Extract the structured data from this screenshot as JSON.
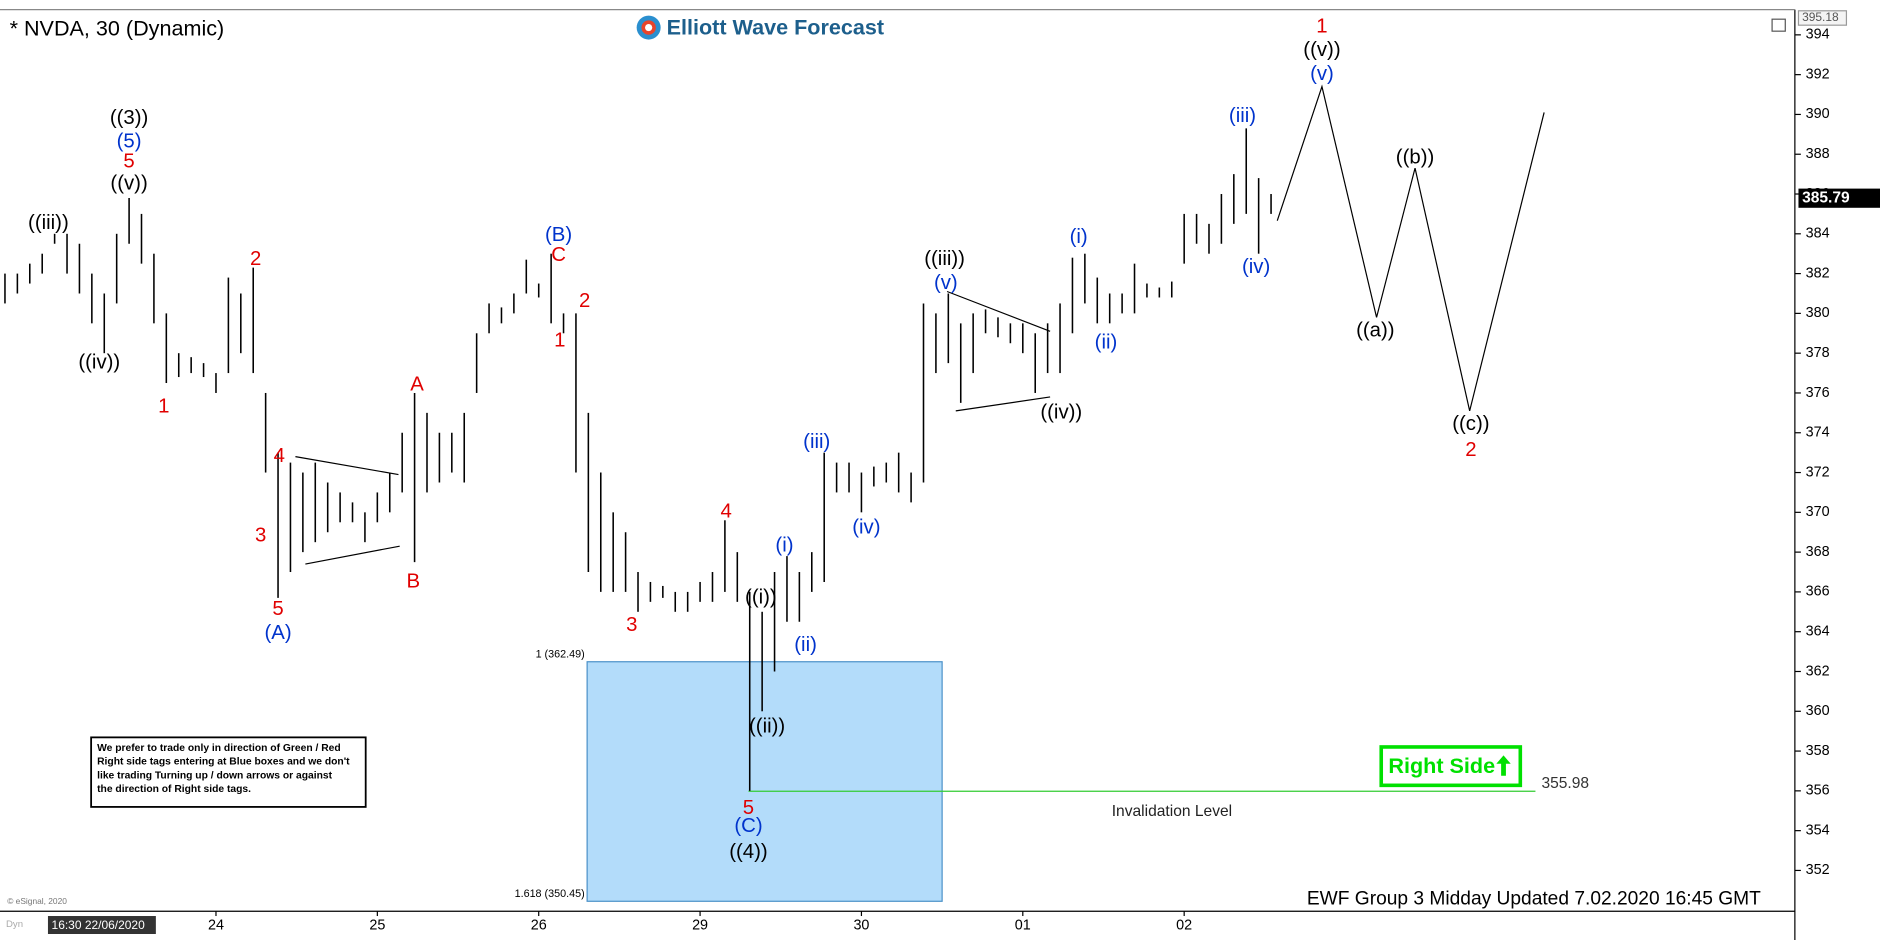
{
  "chart_data": {
    "type": "ohlc",
    "title": "* NVDA, 30 (Dynamic)",
    "logo": "Elliott Wave Forecast",
    "footer": "EWF Group 3 Midday Updated 7.02.2020 16:45 GMT",
    "copyright": "© eSignal, 2020",
    "cursor_time": "16:30 22/06/2020",
    "dyn_label": "Dyn",
    "note": [
      "We prefer to trade only in direction of Green / Red",
      "Right side tags entering at Blue boxes and we don't",
      "like trading Turning up / down arrows or against",
      "the direction of Right side tags."
    ],
    "right_side": "Right Side",
    "right_side_color": "#00e000",
    "xlim": [
      -4.4,
      140.2
    ],
    "ylim": [
      349.95,
      395.27
    ],
    "xticks": [
      {
        "value": 13,
        "label": "24"
      },
      {
        "value": 26,
        "label": "25"
      },
      {
        "value": 39,
        "label": "26"
      },
      {
        "value": 52,
        "label": "29"
      },
      {
        "value": 65,
        "label": "30"
      },
      {
        "value": 78,
        "label": "01"
      },
      {
        "value": 91,
        "label": "02"
      }
    ],
    "yticks": [
      352,
      354,
      356,
      358,
      360,
      362,
      364,
      366,
      368,
      370,
      372,
      374,
      376,
      378,
      380,
      382,
      384,
      386,
      388,
      390,
      392,
      394
    ],
    "top_price": 395.18,
    "last_price": 385.79,
    "bars": {
      "color": "#000000",
      "x": [
        -4,
        -3,
        -2,
        -1,
        0,
        1,
        2,
        3,
        4,
        5,
        6,
        7,
        8,
        9,
        10,
        11,
        12,
        13,
        14,
        15,
        16,
        17,
        18,
        19,
        20,
        21,
        22,
        23,
        24,
        25,
        26,
        27,
        28,
        29,
        30,
        31,
        32,
        33,
        34,
        35,
        36,
        37,
        38,
        39,
        40,
        41,
        42,
        43,
        44,
        45,
        46,
        47,
        48,
        49,
        50,
        51,
        52,
        53,
        54,
        55,
        56,
        57,
        58,
        59,
        60,
        61,
        62,
        63,
        64,
        65,
        66,
        67,
        68,
        69,
        70,
        71,
        72,
        73,
        74,
        75,
        76,
        77,
        78,
        79,
        80,
        81,
        82,
        83,
        84,
        85,
        86,
        87,
        88,
        89,
        90,
        91,
        92,
        93,
        94,
        95,
        96,
        97,
        98
      ],
      "high": [
        382,
        382,
        382.5,
        383,
        384,
        384,
        383.5,
        382,
        381,
        384,
        385.8,
        385,
        383,
        380,
        378,
        377.8,
        377.5,
        377,
        381.8,
        381,
        382.3,
        376,
        373,
        372.5,
        372,
        372.5,
        371.5,
        371,
        370.5,
        370,
        371,
        372,
        374,
        376,
        375,
        374,
        374,
        375,
        379,
        380.5,
        380.3,
        381,
        382.7,
        381.5,
        383,
        380,
        380,
        375,
        372,
        370,
        369,
        367,
        366.5,
        366.3,
        366,
        366,
        366.5,
        367,
        369.6,
        368,
        366,
        365,
        367,
        367.8,
        367,
        368,
        373,
        372.5,
        372.5,
        372,
        372.3,
        372.5,
        373,
        372,
        380.5,
        380,
        381,
        379.5,
        380,
        380.2,
        379.8,
        379.5,
        379.5,
        379,
        379.5,
        380.5,
        382.8,
        383,
        381.8,
        381,
        381,
        382.5,
        381.5,
        381.3,
        381.6,
        385,
        385,
        384.5,
        386,
        387,
        389.3,
        386.8,
        386
      ],
      "low": [
        380.5,
        381,
        381.5,
        382,
        383.5,
        382,
        381,
        379.5,
        378,
        380.5,
        383.5,
        382.5,
        379.5,
        376.5,
        376.8,
        377,
        376.8,
        376,
        377,
        378,
        377,
        372,
        365.7,
        367,
        368,
        368.5,
        369,
        369.5,
        369.5,
        368.5,
        369.5,
        370,
        371,
        367.5,
        371,
        371.5,
        372,
        371.5,
        376,
        379,
        379.5,
        380,
        381,
        380.8,
        379.5,
        379,
        372,
        367,
        366,
        366,
        366,
        365,
        365.5,
        365.7,
        365,
        365,
        365.5,
        365.5,
        366,
        365.5,
        356,
        360,
        362,
        364.5,
        364.5,
        366,
        366.5,
        371,
        371,
        370,
        371.3,
        371.5,
        371,
        370.5,
        371.5,
        377,
        377.5,
        375.5,
        377,
        379,
        378.8,
        378.5,
        378,
        376,
        377,
        377,
        379,
        380.5,
        379.5,
        379.5,
        380,
        380,
        380.8,
        380.8,
        380.8,
        382.5,
        383.5,
        383,
        383.5,
        384.5,
        385,
        383,
        385
      ]
    },
    "projection": {
      "color": "#000000",
      "x": [
        98.5,
        102.1,
        106.5,
        109.6,
        114.0,
        120.0
      ],
      "y": [
        384.66,
        391.4,
        379.8,
        387.3,
        375.1,
        390.1
      ]
    },
    "trendlines": [
      {
        "x": [
          19.4,
          27.7
        ],
        "y": [
          372.8,
          371.9
        ]
      },
      {
        "x": [
          20.2,
          27.8
        ],
        "y": [
          367.4,
          368.3
        ]
      },
      {
        "x": [
          71.9,
          80.2
        ],
        "y": [
          381.1,
          379.1
        ]
      },
      {
        "x": [
          72.6,
          80.2
        ],
        "y": [
          375.1,
          375.8
        ]
      }
    ],
    "fib_box": {
      "color": "#b3dcfa",
      "x": [
        42.9,
        71.5
      ],
      "y": [
        362.49,
        350.45
      ],
      "labels": [
        "1 (362.49)",
        "1.618 (350.45)"
      ]
    },
    "invalidation": {
      "value": 355.98,
      "x": [
        55.9,
        119.3
      ],
      "label": "Invalidation Level",
      "color": "#33cc33"
    },
    "annotations": [
      {
        "text": "((iii))",
        "x": -0.5,
        "y": 384.5,
        "color": "#000000"
      },
      {
        "text": "((iv))",
        "x": 3.6,
        "y": 377.5,
        "color": "#000000"
      },
      {
        "text": "((3))",
        "x": 6.0,
        "y": 389.8,
        "color": "#000000"
      },
      {
        "text": "(5)",
        "x": 6.0,
        "y": 388.6,
        "color": "#0033cc"
      },
      {
        "text": "5",
        "x": 6.0,
        "y": 387.6,
        "color": "#e00000"
      },
      {
        "text": "((v))",
        "x": 6.0,
        "y": 386.5,
        "color": "#000000"
      },
      {
        "text": "1",
        "x": 8.8,
        "y": 375.3,
        "color": "#e00000"
      },
      {
        "text": "2",
        "x": 16.2,
        "y": 382.7,
        "color": "#e00000"
      },
      {
        "text": "4",
        "x": 18.1,
        "y": 372.8,
        "color": "#e00000"
      },
      {
        "text": "3",
        "x": 16.6,
        "y": 368.8,
        "color": "#e00000"
      },
      {
        "text": "5",
        "x": 18.0,
        "y": 365.1,
        "color": "#e00000"
      },
      {
        "text": "(A)",
        "x": 18.0,
        "y": 363.9,
        "color": "#0033cc"
      },
      {
        "text": "A",
        "x": 29.2,
        "y": 376.4,
        "color": "#e00000"
      },
      {
        "text": "B",
        "x": 28.9,
        "y": 366.5,
        "color": "#e00000"
      },
      {
        "text": "(B)",
        "x": 40.6,
        "y": 383.9,
        "color": "#0033cc"
      },
      {
        "text": "C",
        "x": 40.6,
        "y": 382.9,
        "color": "#e00000"
      },
      {
        "text": "2",
        "x": 42.7,
        "y": 380.6,
        "color": "#e00000"
      },
      {
        "text": "1",
        "x": 40.7,
        "y": 378.6,
        "color": "#e00000"
      },
      {
        "text": "3",
        "x": 46.5,
        "y": 364.3,
        "color": "#e00000"
      },
      {
        "text": "4",
        "x": 54.1,
        "y": 370.0,
        "color": "#e00000"
      },
      {
        "text": "((i))",
        "x": 56.9,
        "y": 365.7,
        "color": "#000000"
      },
      {
        "text": "(i)",
        "x": 58.8,
        "y": 368.3,
        "color": "#0033cc"
      },
      {
        "text": "(iii)",
        "x": 61.4,
        "y": 373.5,
        "color": "#0033cc"
      },
      {
        "text": "(iv)",
        "x": 65.4,
        "y": 369.2,
        "color": "#0033cc"
      },
      {
        "text": "(ii)",
        "x": 60.5,
        "y": 363.3,
        "color": "#0033cc"
      },
      {
        "text": "((ii))",
        "x": 57.4,
        "y": 359.2,
        "color": "#000000"
      },
      {
        "text": "5",
        "x": 55.9,
        "y": 355.1,
        "color": "#e00000"
      },
      {
        "text": "(C)",
        "x": 55.9,
        "y": 354.2,
        "color": "#0033cc"
      },
      {
        "text": "((4))",
        "x": 55.9,
        "y": 352.9,
        "color": "#000000"
      },
      {
        "text": "((iii))",
        "x": 71.7,
        "y": 382.7,
        "color": "#000000"
      },
      {
        "text": "(v)",
        "x": 71.8,
        "y": 381.5,
        "color": "#0033cc"
      },
      {
        "text": "((iv))",
        "x": 81.1,
        "y": 375.0,
        "color": "#000000"
      },
      {
        "text": "(i)",
        "x": 82.5,
        "y": 383.8,
        "color": "#0033cc"
      },
      {
        "text": "(ii)",
        "x": 84.7,
        "y": 378.5,
        "color": "#0033cc"
      },
      {
        "text": "(iii)",
        "x": 95.7,
        "y": 389.9,
        "color": "#0033cc"
      },
      {
        "text": "(iv)",
        "x": 96.8,
        "y": 382.3,
        "color": "#0033cc"
      },
      {
        "text": "1",
        "x": 102.1,
        "y": 394.4,
        "color": "#e00000"
      },
      {
        "text": "((v))",
        "x": 102.1,
        "y": 393.2,
        "color": "#000000"
      },
      {
        "text": "(v)",
        "x": 102.1,
        "y": 392.0,
        "color": "#0033cc"
      },
      {
        "text": "((b))",
        "x": 109.6,
        "y": 387.8,
        "color": "#000000"
      },
      {
        "text": "((a))",
        "x": 106.4,
        "y": 379.1,
        "color": "#000000"
      },
      {
        "text": "((c))",
        "x": 114.1,
        "y": 374.4,
        "color": "#000000"
      },
      {
        "text": "2",
        "x": 114.1,
        "y": 373.1,
        "color": "#e00000"
      }
    ]
  }
}
